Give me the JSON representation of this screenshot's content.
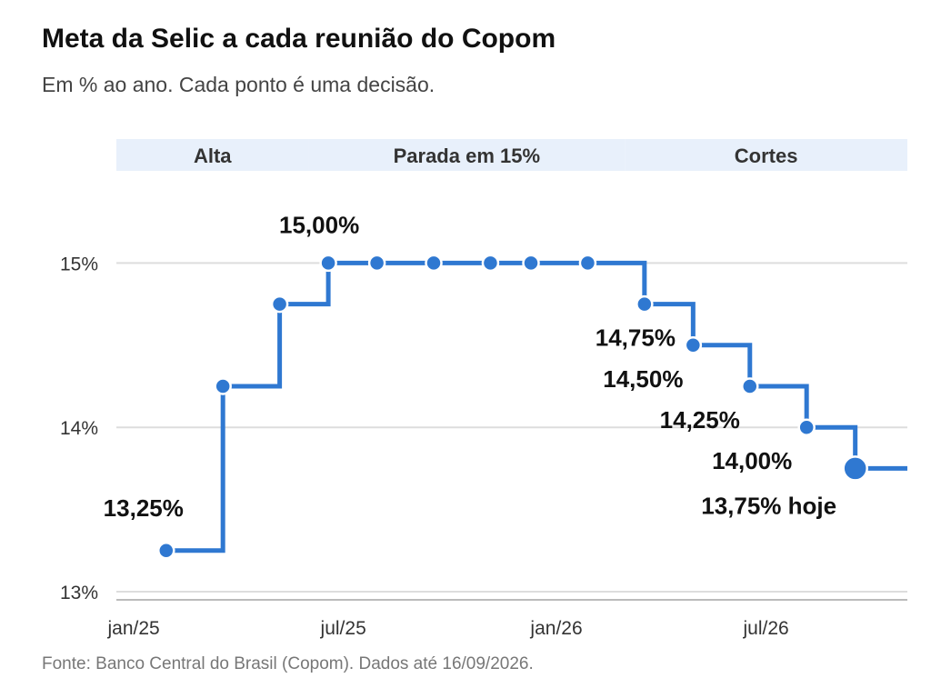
{
  "title": "Meta da Selic a cada reunião do Copom",
  "subtitle": "Em % ao ano. Cada ponto é uma decisão.",
  "source": "Fonte: Banco Central do Brasil (Copom). Dados até 16/09/2026.",
  "colors": {
    "line": "#2f78d1",
    "band": "#e8f0fb",
    "grid": "#dddddd",
    "axis": "#bbbbbb"
  },
  "chart_data": {
    "type": "line",
    "step": "post",
    "ylim": [
      12.95,
      15.55
    ],
    "y_ticks": [
      {
        "value": 13,
        "label": "13%"
      },
      {
        "value": 14,
        "label": "14%"
      },
      {
        "value": 15,
        "label": "15%"
      }
    ],
    "x_ticks": [
      {
        "date": "2025-01-01",
        "label": "jan/25"
      },
      {
        "date": "2025-07-01",
        "label": "jul/25"
      },
      {
        "date": "2026-01-01",
        "label": "jan/26"
      },
      {
        "date": "2026-07-01",
        "label": "jul/26"
      }
    ],
    "xlim": [
      "2024-12-17",
      "2026-10-31"
    ],
    "points": [
      {
        "date": "2025-01-29",
        "value": 13.25
      },
      {
        "date": "2025-03-19",
        "value": 14.25
      },
      {
        "date": "2025-05-07",
        "value": 14.75
      },
      {
        "date": "2025-06-18",
        "value": 15.0
      },
      {
        "date": "2025-07-30",
        "value": 15.0
      },
      {
        "date": "2025-09-17",
        "value": 15.0
      },
      {
        "date": "2025-11-05",
        "value": 15.0
      },
      {
        "date": "2025-12-10",
        "value": 15.0
      },
      {
        "date": "2026-01-28",
        "value": 15.0
      },
      {
        "date": "2026-03-18",
        "value": 14.75
      },
      {
        "date": "2026-04-29",
        "value": 14.5
      },
      {
        "date": "2026-06-17",
        "value": 14.25
      },
      {
        "date": "2026-08-05",
        "value": 14.0
      },
      {
        "date": "2026-09-16",
        "value": 13.75,
        "current": true
      }
    ],
    "line_end": "2026-10-31",
    "labels": [
      {
        "text": "13,25%",
        "point": 0
      },
      {
        "text": "15,00%",
        "point": 3
      },
      {
        "text": "14,75%",
        "point": 9
      },
      {
        "text": "14,50%",
        "point": 10
      },
      {
        "text": "14,25%",
        "point": 11
      },
      {
        "text": "14,00%",
        "point": 12
      },
      {
        "text": "13,75% hoje",
        "point": 13
      }
    ],
    "phases": [
      {
        "label": "Alta",
        "from": "2024-12-17",
        "to": "2025-06-01"
      },
      {
        "label": "Parada em 15%",
        "from": "2025-06-01",
        "to": "2026-03-01"
      },
      {
        "label": "Cortes",
        "from": "2026-03-01",
        "to": "2026-10-31"
      }
    ]
  }
}
